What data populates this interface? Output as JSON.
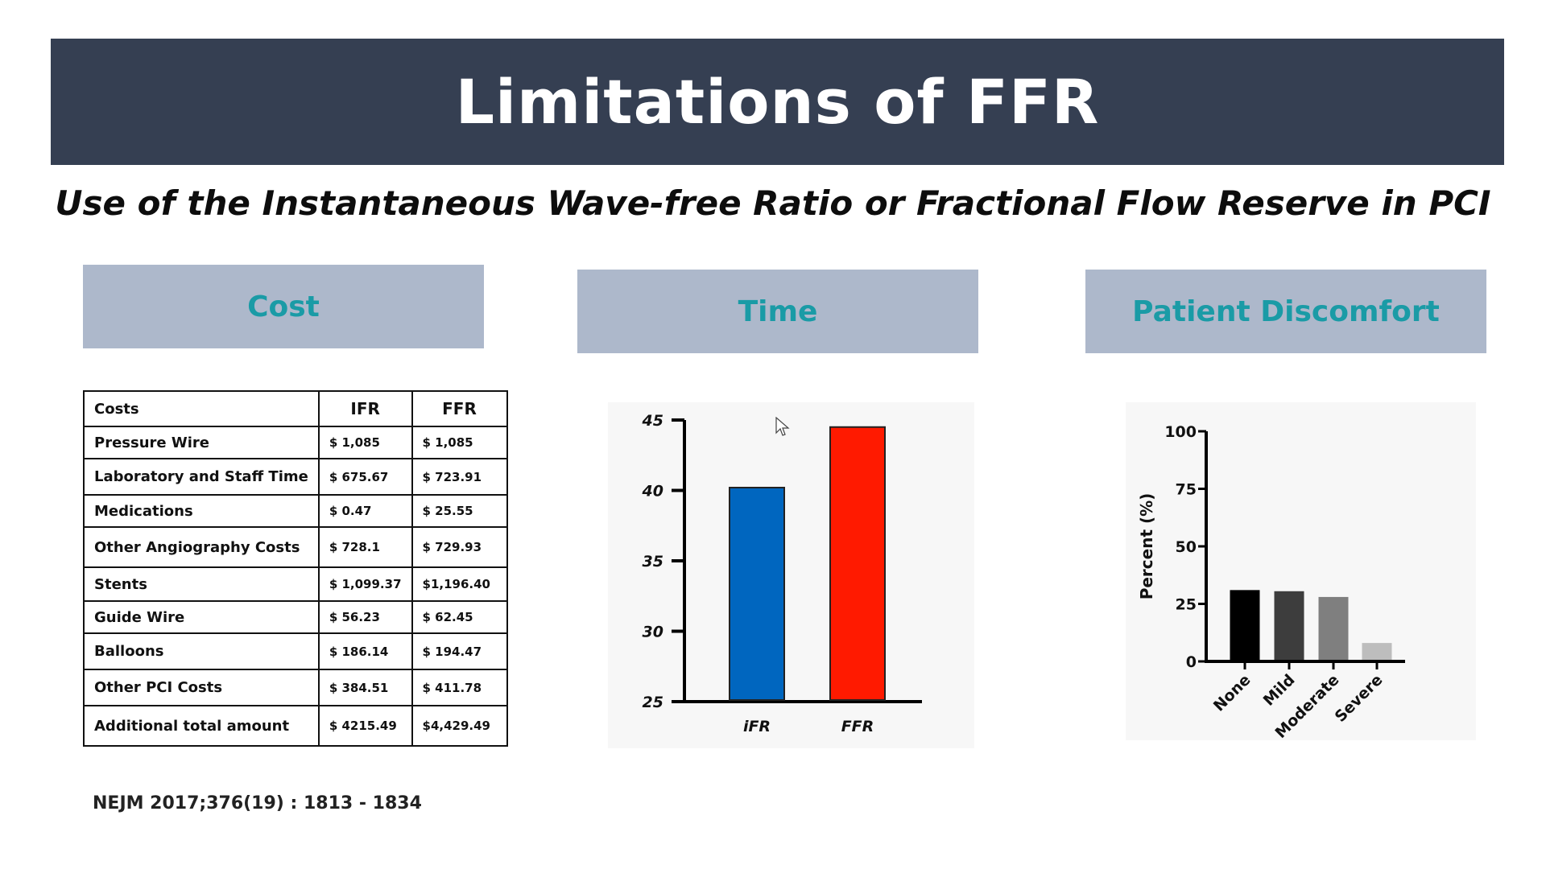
{
  "slide": {
    "title": "Limitations of FFR",
    "subtitle": "Use of the Instantaneous Wave-free Ratio or Fractional Flow Reserve in PCI",
    "sections": {
      "cost": "Cost",
      "time": "Time",
      "discomfort": "Patient Discomfort"
    },
    "reference": "NEJM 2017;376(19) : 1813 - 1834"
  },
  "cost_table": {
    "headers": [
      "Costs",
      "IFR",
      "FFR"
    ],
    "rows": [
      [
        "Pressure Wire",
        "$ 1,085",
        "$ 1,085"
      ],
      [
        "Laboratory and Staff Time",
        "$ 675.67",
        "$ 723.91"
      ],
      [
        "Medications",
        "$ 0.47",
        "$ 25.55"
      ],
      [
        "Other Angiography Costs",
        "$ 728.1",
        "$ 729.93"
      ],
      [
        "Stents",
        "$ 1,099.37",
        "$1,196.40"
      ],
      [
        "Guide Wire",
        "$ 56.23",
        "$ 62.45"
      ],
      [
        "Balloons",
        "$ 186.14",
        "$ 194.47"
      ],
      [
        "Other PCI Costs",
        "$ 384.51",
        "$ 411.78"
      ],
      [
        "Additional total amount",
        "$ 4215.49",
        "$4,429.49"
      ]
    ]
  },
  "chart_data": [
    {
      "type": "bar",
      "categories": [
        "iFR",
        "FFR"
      ],
      "values": [
        40.2,
        44.5
      ],
      "colors": [
        "#0066bf",
        "#ff1a00"
      ],
      "ylim": [
        25,
        45
      ],
      "yticks": [
        25,
        30,
        35,
        40,
        45
      ],
      "title": "",
      "xlabel": "",
      "ylabel": ""
    },
    {
      "type": "bar",
      "categories": [
        "None",
        "Mild",
        "Moderate",
        "Severe"
      ],
      "values": [
        31,
        30.5,
        28,
        8
      ],
      "colors": [
        "#000000",
        "#3d3d3d",
        "#7f7f7f",
        "#bdbdbd"
      ],
      "ylim": [
        0,
        100
      ],
      "yticks": [
        0,
        25,
        50,
        75,
        100
      ],
      "title": "",
      "xlabel": "",
      "ylabel": "Percent (%)"
    }
  ]
}
